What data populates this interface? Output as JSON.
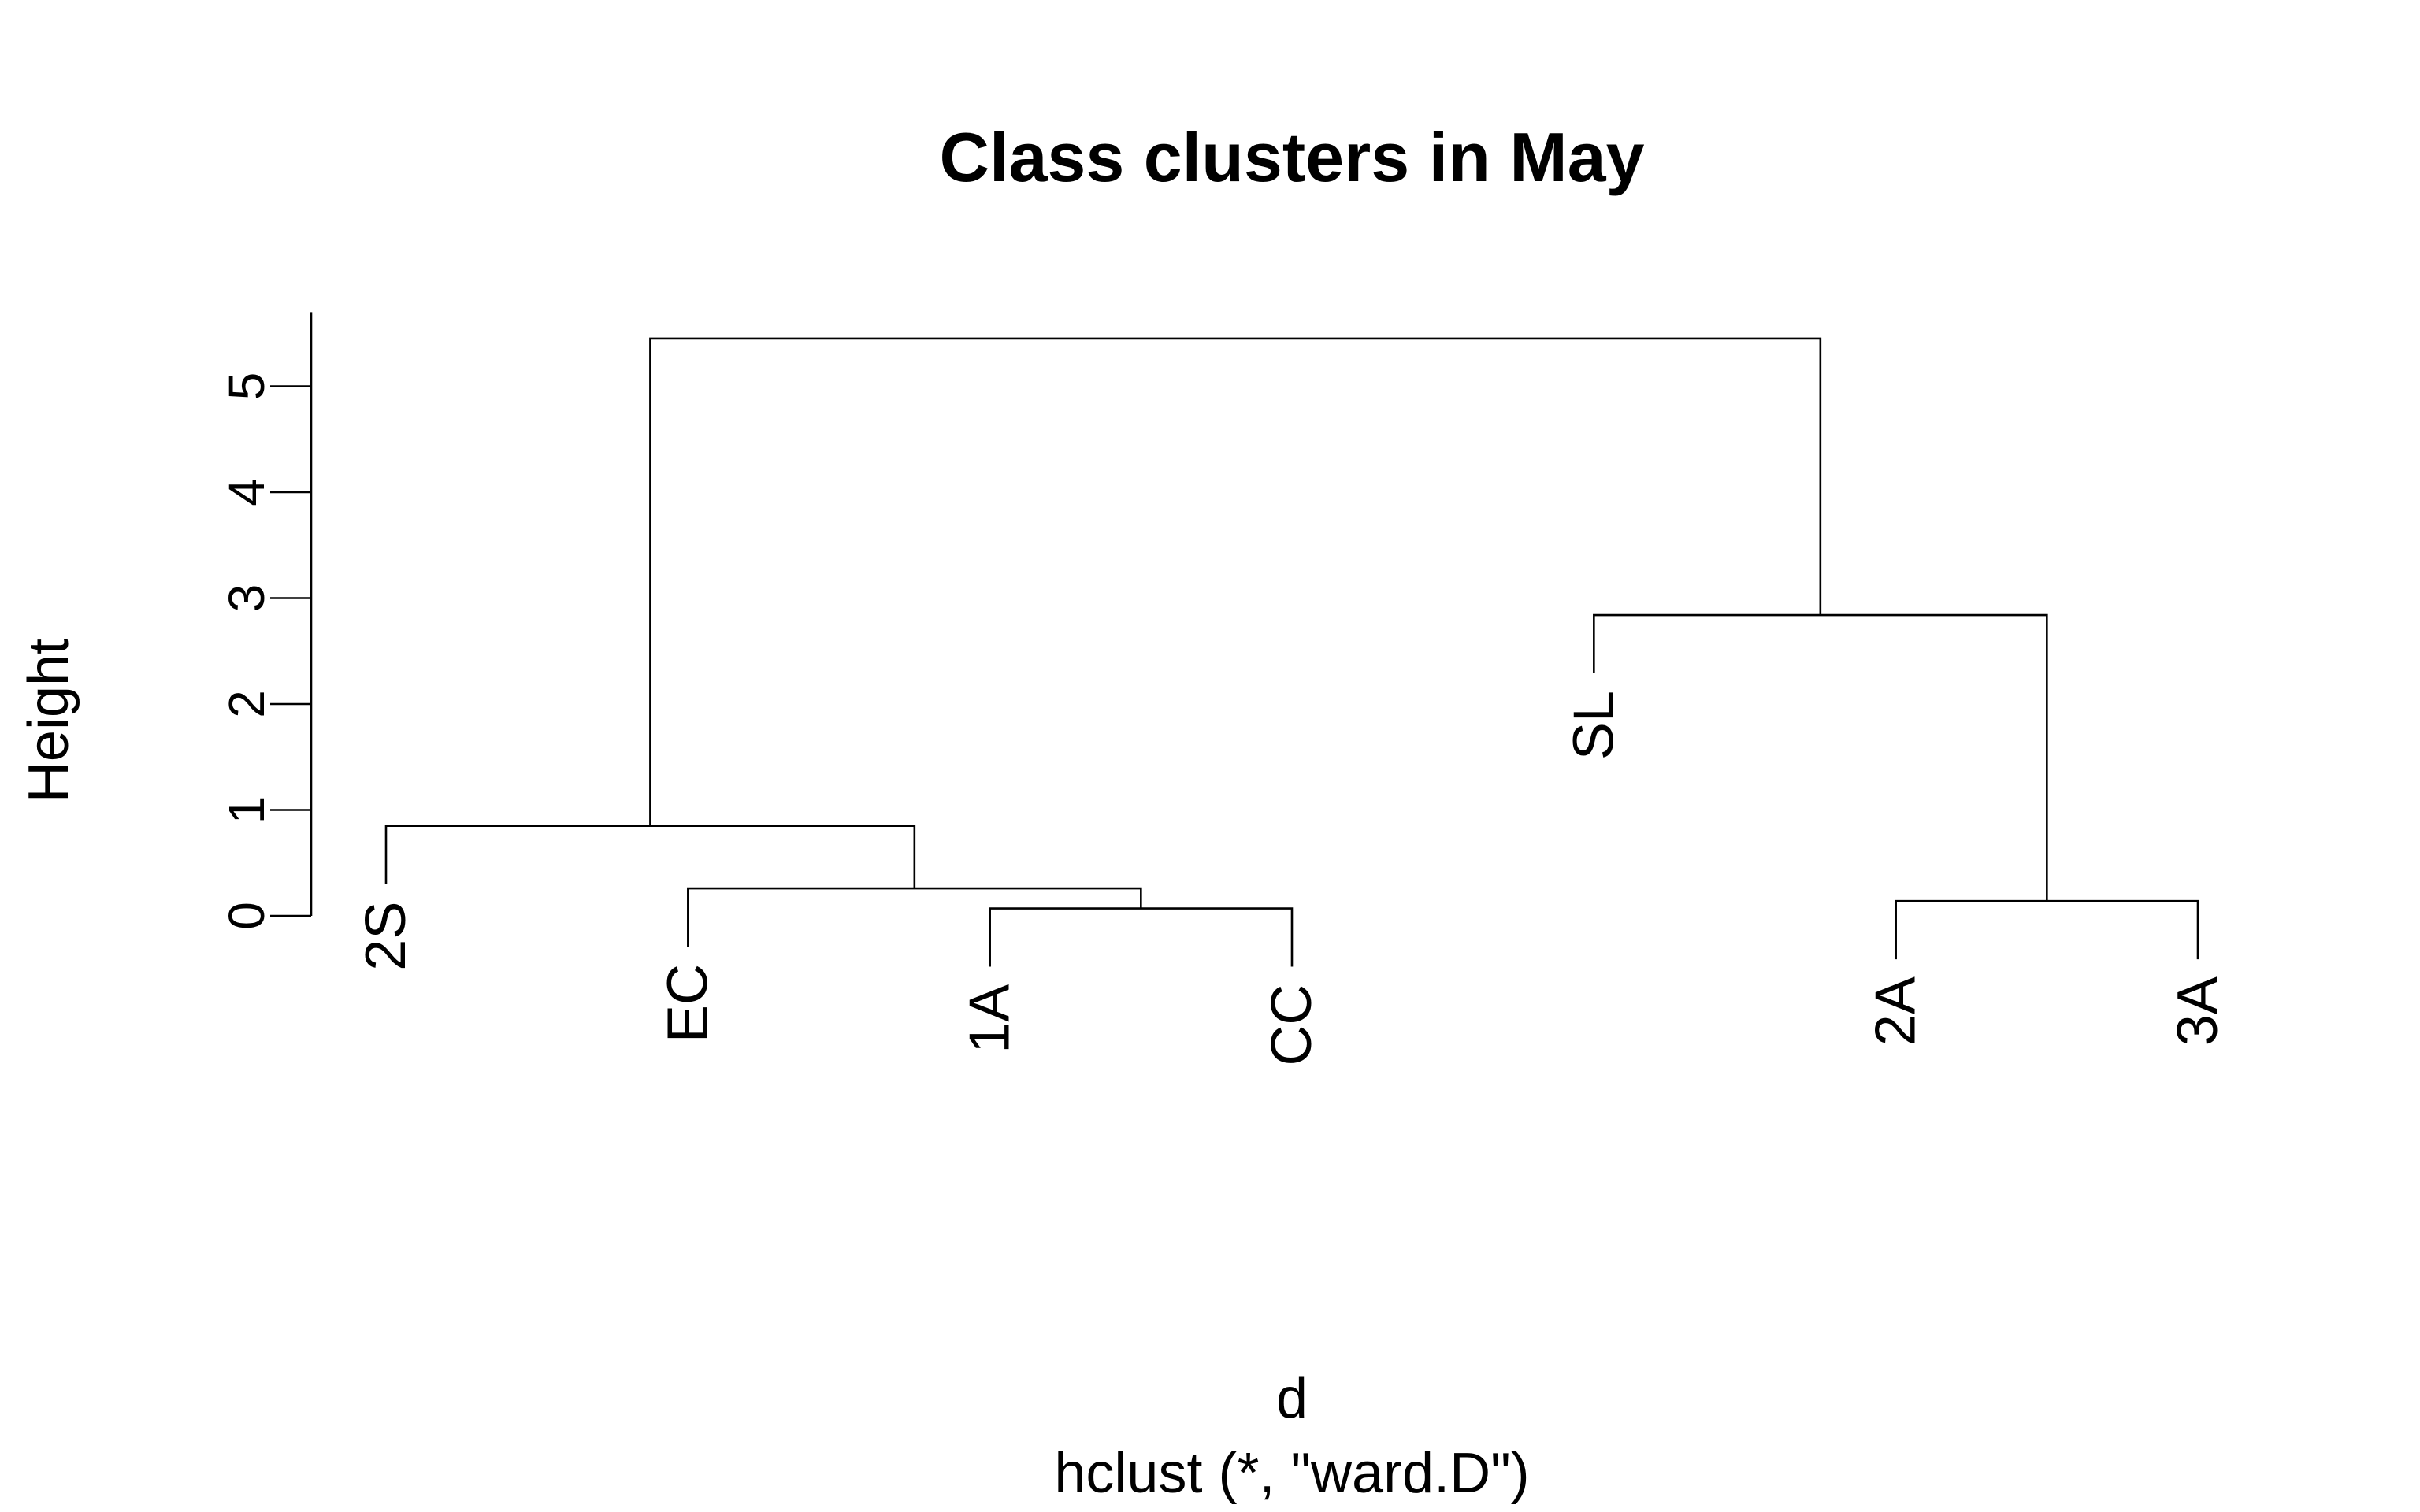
{
  "chart_data": {
    "type": "dendrogram",
    "title": "Class clusters in May",
    "ylabel": "Height",
    "xlabel": "d",
    "sublabel": "hclust (*, \"ward.D\")",
    "ylim": [
      0,
      5.7
    ],
    "yticks": [
      0,
      1,
      2,
      3,
      4,
      5
    ],
    "hang": 0.55,
    "leaves": [
      "2S",
      "EC",
      "1A",
      "CC",
      "SL",
      "2A",
      "3A"
    ],
    "merges": [
      {
        "left": "1A",
        "right": "CC",
        "height": 0.07
      },
      {
        "left": "2A",
        "right": "3A",
        "height": 0.14
      },
      {
        "left": "EC",
        "right": "1A+CC",
        "height": 0.26
      },
      {
        "left": "2S",
        "right": "EC+1A+CC",
        "height": 0.85
      },
      {
        "left": "SL",
        "right": "2A+3A",
        "height": 2.84
      },
      {
        "left": "2S+EC+1A+CC",
        "right": "SL+2A+3A",
        "height": 5.45
      }
    ]
  }
}
